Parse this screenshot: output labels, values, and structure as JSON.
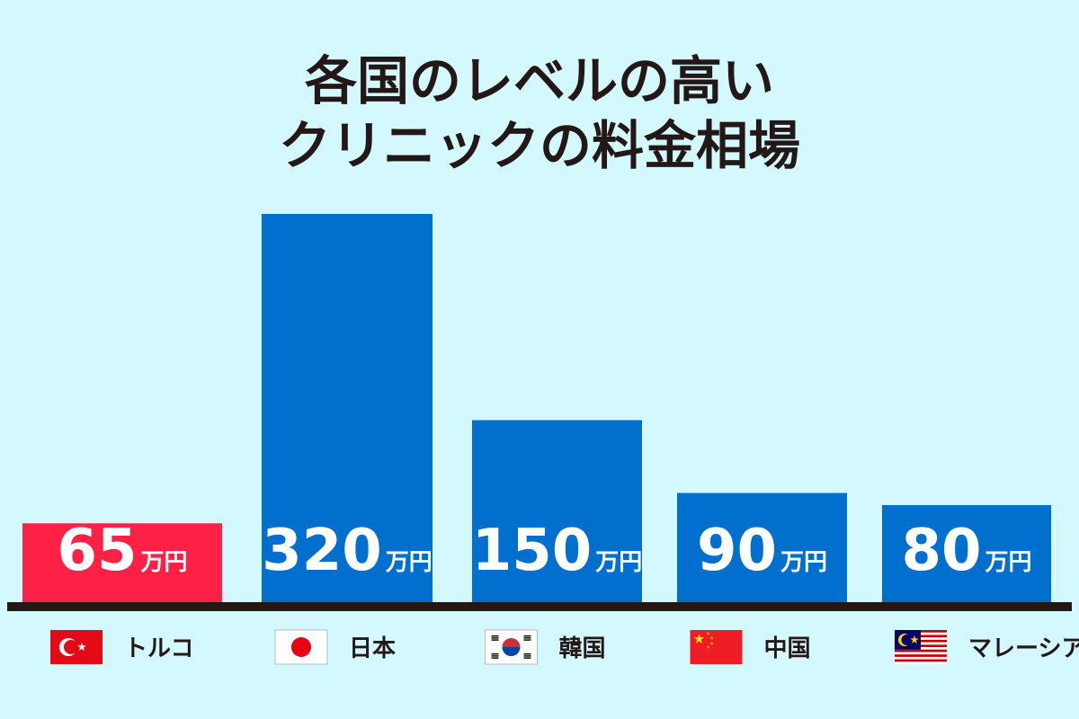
{
  "chart_data": {
    "type": "bar",
    "title_lines": [
      "各国のレベルの高い",
      "クリニックの料金相場"
    ],
    "xlabel": "",
    "ylabel": "",
    "unit": "万円",
    "categories": [
      "トルコ",
      "日本",
      "韓国",
      "中国",
      "マレーシア"
    ],
    "values": [
      65,
      320,
      150,
      90,
      80
    ],
    "ylim": [
      0,
      320
    ],
    "grid": false,
    "legend": "none",
    "flag_icons": [
      "turkey-flag-icon",
      "japan-flag-icon",
      "korea-flag-icon",
      "china-flag-icon",
      "malaysia-flag-icon"
    ]
  },
  "colors": {
    "background": "#d3f8fd",
    "highlight_bar": "#fe2146",
    "bar": "#006fcd",
    "baseline": "#231815",
    "text": "#231815",
    "value_text": "#ffffff"
  }
}
